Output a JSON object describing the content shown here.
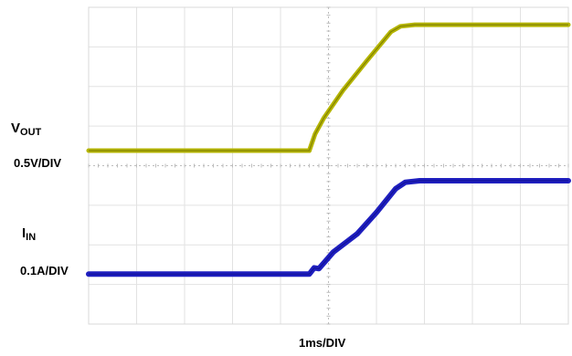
{
  "chart_data": {
    "type": "line",
    "title": "",
    "xlabel": "1ms/DIV",
    "ylabel": "",
    "grid": true,
    "divisions": {
      "x": 10,
      "y": 8
    },
    "x_unit": "ms",
    "x_range_div": [
      0,
      10
    ],
    "series": [
      {
        "name_main": "V",
        "name_sub": "OUT",
        "scale": "0.5V/DIV",
        "color": "#b5b500",
        "x_div": [
          0,
          4.6,
          4.72,
          4.9,
          5.3,
          5.8,
          6.3,
          6.5,
          6.8,
          7.2,
          10
        ],
        "y_div": [
          4.38,
          4.38,
          4.8,
          5.2,
          5.9,
          6.65,
          7.38,
          7.52,
          7.56,
          7.56,
          7.56
        ]
      },
      {
        "name_main": "I",
        "name_sub": "IN",
        "scale": "0.1A/DIV",
        "color": "#1f1fbf",
        "x_div": [
          0,
          4.6,
          4.7,
          4.8,
          5.1,
          5.6,
          6.0,
          6.4,
          6.6,
          6.9,
          7.3,
          10
        ],
        "y_div": [
          1.26,
          1.26,
          1.42,
          1.4,
          1.82,
          2.28,
          2.82,
          3.42,
          3.58,
          3.62,
          3.62,
          3.62
        ]
      }
    ]
  }
}
